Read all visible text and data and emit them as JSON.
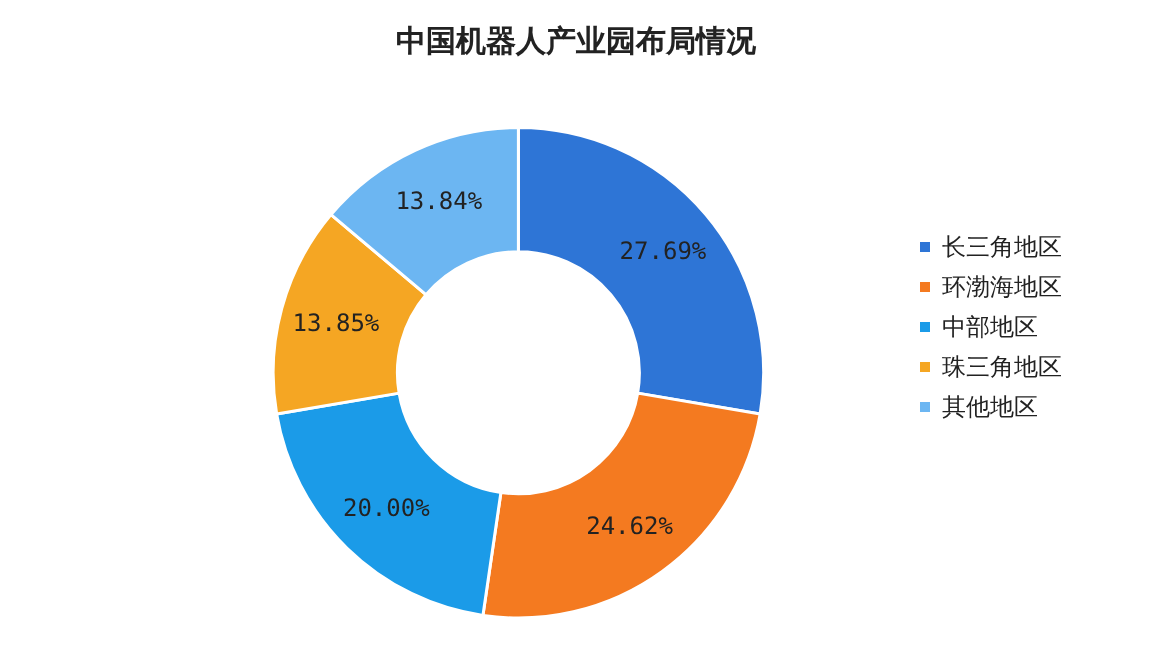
{
  "chart_data": {
    "type": "donut",
    "title": "中国机器人产业园布局情况",
    "categories": [
      "长三角地区",
      "环渤海地区",
      "中部地区",
      "珠三角地区",
      "其他地区"
    ],
    "values": [
      27.69,
      24.62,
      20.0,
      13.85,
      13.84
    ],
    "colors": [
      "#2e75d6",
      "#f47a20",
      "#1b9be8",
      "#f5a623",
      "#6cb6f2"
    ],
    "value_labels": [
      "27.69%",
      "24.62%",
      "20.00%",
      "13.85%",
      "13.84%"
    ],
    "legend": "right"
  }
}
